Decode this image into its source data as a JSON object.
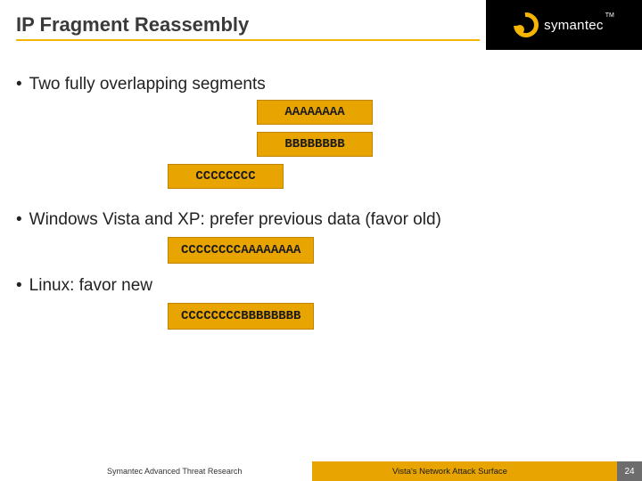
{
  "header": {
    "title": "IP Fragment Reassembly",
    "brand": "symantec",
    "tm": "TM"
  },
  "bullets": {
    "b1": "Two fully overlapping segments",
    "b2": "Windows Vista and XP: prefer previous data (favor old)",
    "b3": "Linux: favor new"
  },
  "segments": {
    "a": "AAAAAAAA",
    "b": "BBBBBBBB",
    "c": "CCCCCCCC"
  },
  "results": {
    "old": "CCCCCCCCAAAAAAAA",
    "new": "CCCCCCCCBBBBBBBB"
  },
  "footer": {
    "left": "Symantec Advanced Threat Research",
    "right": "Vista's Network Attack Surface",
    "page": "24"
  },
  "colors": {
    "accent": "#e8a400",
    "underline": "#f4b400",
    "header_black": "#000000",
    "page_bg": "#6d6d6d"
  }
}
